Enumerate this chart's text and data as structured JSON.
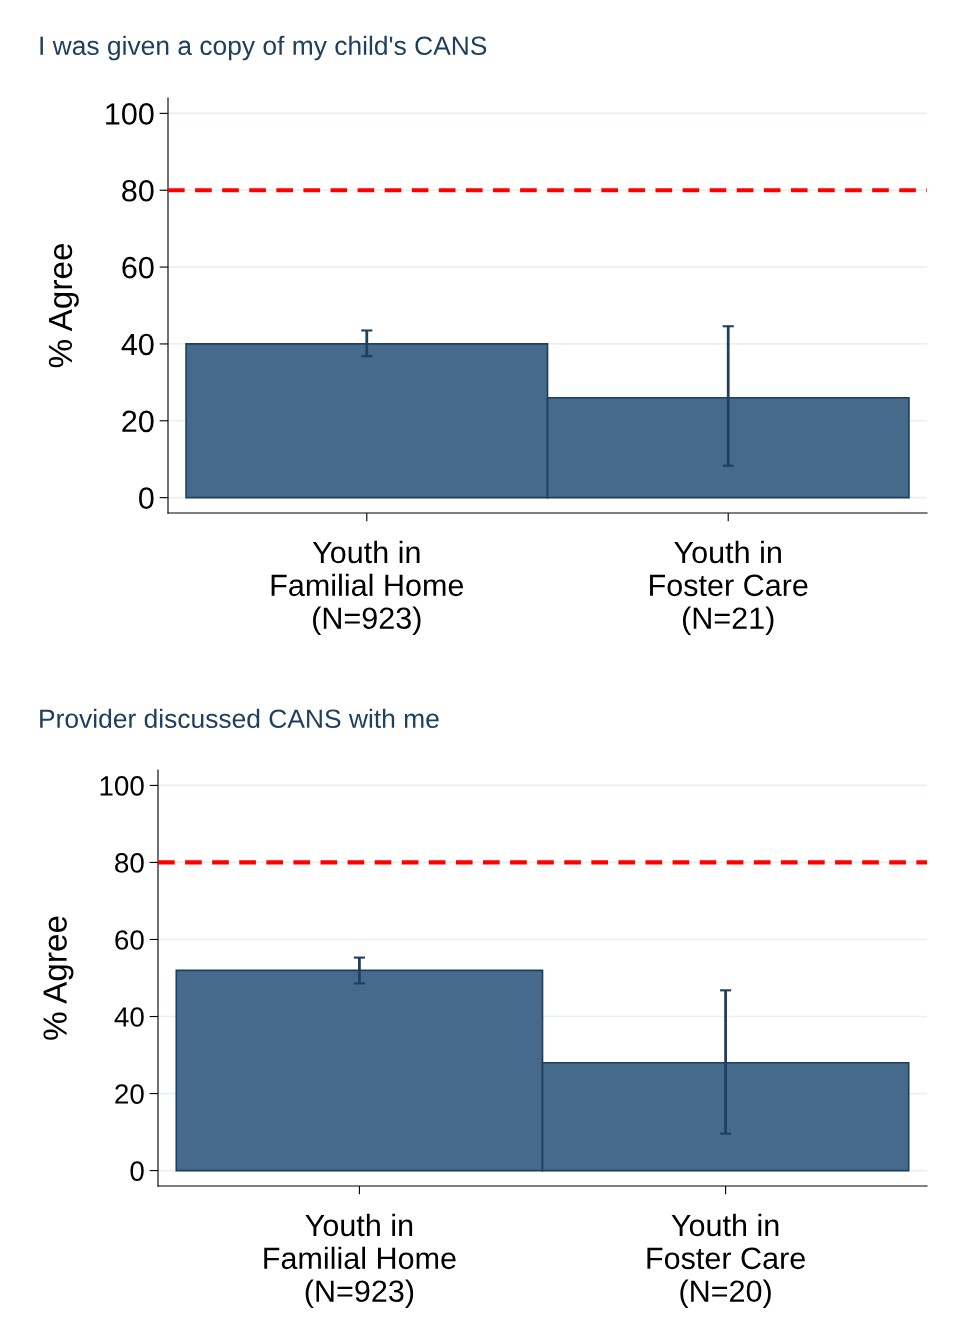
{
  "chart_data": [
    {
      "type": "bar",
      "title": "I was given a copy of my child's CANS",
      "ylabel": "% Agree",
      "categories": [
        "Youth in\nFamilial Home\n(N=923)",
        "Youth in\nFoster Care\n(N=21)"
      ],
      "values": [
        40,
        26
      ],
      "errors": [
        [
          36.8,
          43.5
        ],
        [
          8.3,
          44.6
        ]
      ],
      "color": "#466a8c",
      "ylim": [
        -4,
        104
      ],
      "yticks": [
        0,
        20,
        40,
        60,
        80,
        100
      ],
      "grid": "y",
      "legend": false,
      "ref_lines": [
        {
          "axis": "y",
          "value": 80,
          "color": "#ff0000",
          "line_style": "dashed"
        }
      ]
    },
    {
      "type": "bar",
      "title": "Provider discussed CANS with me",
      "ylabel": "% Agree",
      "categories": [
        "Youth in\nFamilial Home\n(N=923)",
        "Youth in\nFoster Care\n(N=20)"
      ],
      "values": [
        52,
        28
      ],
      "errors": [
        [
          48.6,
          55.3
        ],
        [
          9.6,
          46.8
        ]
      ],
      "color": "#466a8c",
      "ylim": [
        -4,
        104
      ],
      "yticks": [
        0,
        20,
        40,
        60,
        80,
        100
      ],
      "grid": "y",
      "legend": false,
      "ref_lines": [
        {
          "axis": "y",
          "value": 80,
          "color": "#ff0000",
          "line_style": "dashed"
        }
      ]
    }
  ]
}
